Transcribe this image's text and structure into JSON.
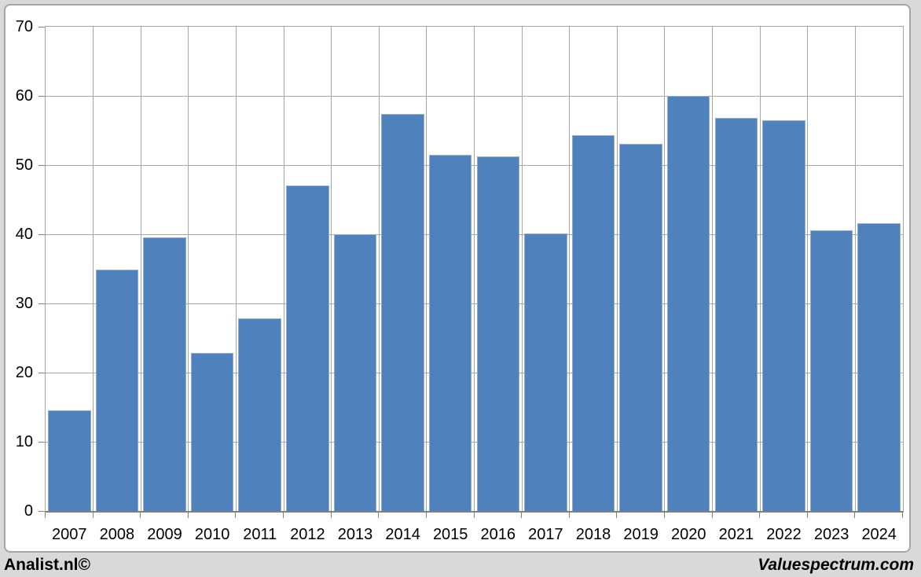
{
  "chart_data": {
    "type": "bar",
    "title": "",
    "xlabel": "",
    "ylabel": "",
    "categories": [
      "2007",
      "2008",
      "2009",
      "2010",
      "2011",
      "2012",
      "2013",
      "2014",
      "2015",
      "2016",
      "2017",
      "2018",
      "2019",
      "2020",
      "2021",
      "2022",
      "2023",
      "2024"
    ],
    "values": [
      14.6,
      34.9,
      39.6,
      22.8,
      27.8,
      47.0,
      40.0,
      57.4,
      51.5,
      51.2,
      40.1,
      54.3,
      53.1,
      60.0,
      56.8,
      56.5,
      40.6,
      41.6
    ],
    "ylim": [
      0,
      70
    ],
    "ytick_step": 10,
    "grid": true,
    "legend_position": "none",
    "bar_color": "#4F81BD",
    "bar_border_color": "#8FACD3"
  },
  "colors": {
    "page_bg": "#D9D9D9",
    "chart_bg": "#FFFFFF",
    "frame_border": "#A6A6A6",
    "gridline": "#A6A6A6",
    "axis_line": "#808080",
    "text": "#000000"
  },
  "footer": {
    "left_text": "Analist.nl©",
    "right_text": "Valuespectrum.com"
  }
}
